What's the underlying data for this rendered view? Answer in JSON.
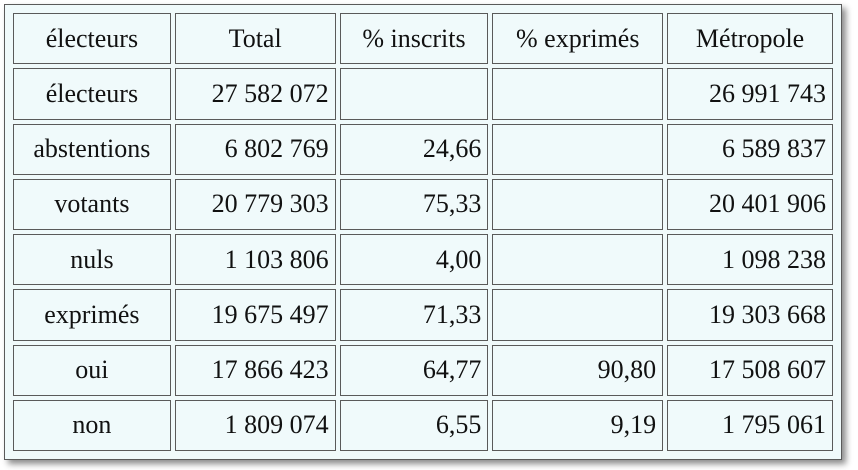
{
  "headers": [
    "électeurs",
    "Total",
    "% inscrits",
    "% exprimés",
    "Métropole"
  ],
  "rows": [
    {
      "label": "électeurs",
      "total": "27 582 072",
      "pct_inscrits": "",
      "pct_exprimes": "",
      "metropole": "26 991 743"
    },
    {
      "label": "abstentions",
      "total": "6 802 769",
      "pct_inscrits": "24,66",
      "pct_exprimes": "",
      "metropole": "6 589 837"
    },
    {
      "label": "votants",
      "total": "20 779 303",
      "pct_inscrits": "75,33",
      "pct_exprimes": "",
      "metropole": "20 401 906"
    },
    {
      "label": "nuls",
      "total": "1 103 806",
      "pct_inscrits": "4,00",
      "pct_exprimes": "",
      "metropole": "1 098 238"
    },
    {
      "label": "exprimés",
      "total": "19 675 497",
      "pct_inscrits": "71,33",
      "pct_exprimes": "",
      "metropole": "19 303 668"
    },
    {
      "label": "oui",
      "total": "17 866 423",
      "pct_inscrits": "64,77",
      "pct_exprimes": "90,80",
      "metropole": "17 508 607"
    },
    {
      "label": "non",
      "total": "1 809 074",
      "pct_inscrits": "6,55",
      "pct_exprimes": "9,19",
      "metropole": "1 795 061"
    }
  ]
}
